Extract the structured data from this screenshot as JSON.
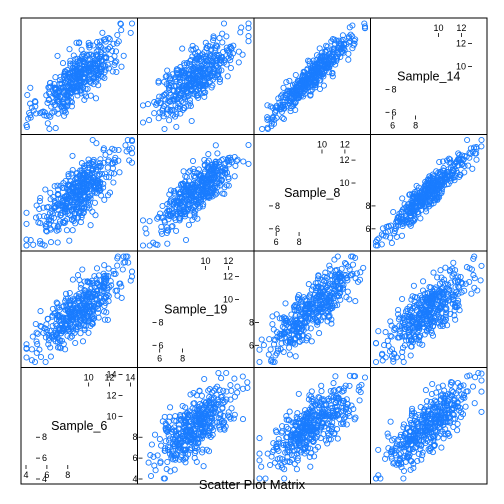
{
  "caption": "Scatter Plot Matrix",
  "chart_data": {
    "type": "scatter",
    "variables": [
      "Sample_14",
      "Sample_8",
      "Sample_19",
      "Sample_6"
    ],
    "variable_order_top_to_bottom": [
      "Sample_14",
      "Sample_8",
      "Sample_19",
      "Sample_6"
    ],
    "variable_order_left_to_right": [
      "Sample_6",
      "Sample_19",
      "Sample_8",
      "Sample_14"
    ],
    "axis_ranges": {
      "Sample_14": [
        4.5,
        13.8
      ],
      "Sample_8": [
        4.5,
        13.8
      ],
      "Sample_19": [
        4.5,
        13.8
      ],
      "Sample_6": [
        4.0,
        14.2
      ]
    },
    "diagonal_ticks": {
      "Sample_14": {
        "low": [
          "6",
          "8"
        ],
        "high": [
          "10",
          "12"
        ]
      },
      "Sample_8": {
        "low": [
          "6",
          "8"
        ],
        "high": [
          "10",
          "12"
        ]
      },
      "Sample_19": {
        "low": [
          "6",
          "8"
        ],
        "high": [
          "10",
          "12"
        ]
      },
      "Sample_6": {
        "low": [
          "4",
          "6",
          "8"
        ],
        "high": [
          "10",
          "12",
          "14"
        ]
      }
    },
    "side_axis_ticks": {
      "Sample_14": [
        "6",
        "8"
      ],
      "Sample_8": [
        "6",
        "8"
      ],
      "Sample_19": [
        "6",
        "8"
      ],
      "Sample_6": [
        "4",
        "6",
        "8"
      ]
    },
    "correlation": {
      "Sample_14|Sample_8": 0.93,
      "Sample_14|Sample_19": 0.78,
      "Sample_14|Sample_6": 0.76,
      "Sample_8|Sample_19": 0.8,
      "Sample_8|Sample_6": 0.75,
      "Sample_19|Sample_6": 0.74
    },
    "marker_color": "#1a7cff",
    "marker_shape": "open-circle",
    "grid": false,
    "legend": "none"
  }
}
